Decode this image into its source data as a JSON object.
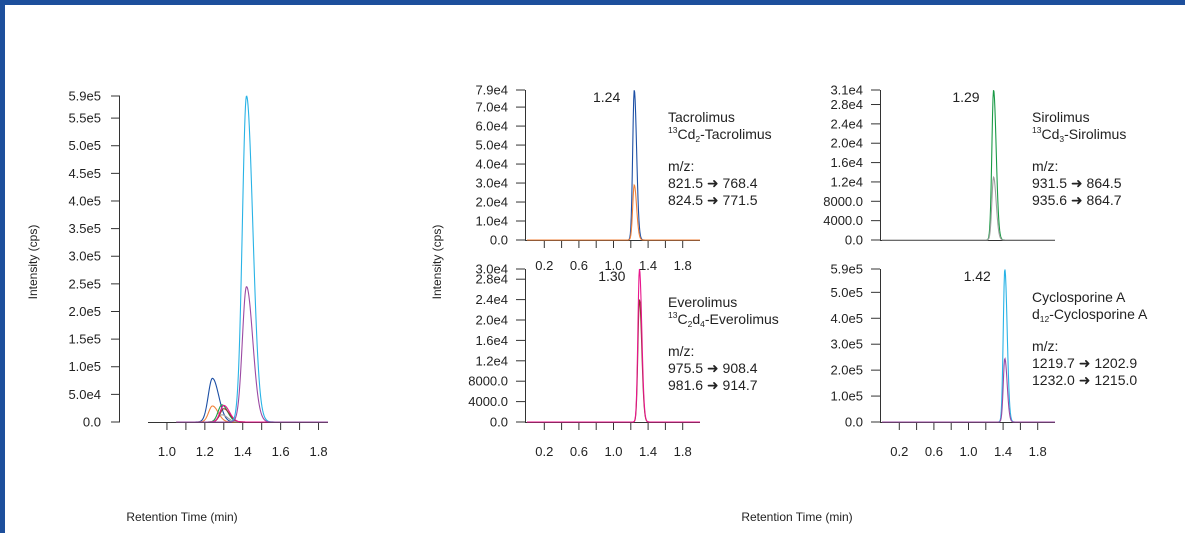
{
  "labels": {
    "x_left": "Retention Time (min)",
    "x_right": "Retention Time (min)",
    "y_left": "Intensity (cps)",
    "y_right": "Intensity (cps)"
  },
  "colors": {
    "frame": "#1d4f9c",
    "tacrolimus": "#1c4fa5",
    "tacrolimus_is": "#f0823a",
    "sirolimus": "#1a9a46",
    "sirolimus_is": "#a0a0a0",
    "everolimus": "#8b3a2a",
    "everolimus_is": "#e8168c",
    "cyclosporine": "#29b3e6",
    "cyclosporine_is": "#9b4aa3"
  },
  "chart_data": [
    {
      "id": "overlay",
      "type": "line",
      "xticks": [
        "1.0",
        "1.2",
        "1.4",
        "1.6",
        "1.8"
      ],
      "yticks": [
        "0.0",
        "5.0e4",
        "1.0e5",
        "1.5e5",
        "2.0e5",
        "2.5e5",
        "3.0e5",
        "3.5e5",
        "4.0e5",
        "4.5e5",
        "5.0e5",
        "5.5e5",
        "5.9e5"
      ],
      "xlim": [
        0.9,
        1.85
      ],
      "ylim": [
        0,
        590000
      ],
      "series": [
        {
          "color": "#1c4fa5",
          "peak_x": 1.24,
          "peak_y": 79000,
          "width": 0.022
        },
        {
          "color": "#f0823a",
          "peak_x": 1.24,
          "peak_y": 29000,
          "width": 0.02
        },
        {
          "color": "#1a9a46",
          "peak_x": 1.29,
          "peak_y": 31000,
          "width": 0.02
        },
        {
          "color": "#a0a0a0",
          "peak_x": 1.29,
          "peak_y": 13000,
          "width": 0.02
        },
        {
          "color": "#8b3a2a",
          "peak_x": 1.3,
          "peak_y": 24000,
          "width": 0.02
        },
        {
          "color": "#e8168c",
          "peak_x": 1.3,
          "peak_y": 30000,
          "width": 0.02
        },
        {
          "color": "#29b3e6",
          "peak_x": 1.42,
          "peak_y": 590000,
          "width": 0.022
        },
        {
          "color": "#9b4aa3",
          "peak_x": 1.42,
          "peak_y": 245000,
          "width": 0.022
        }
      ]
    },
    {
      "id": "tacrolimus",
      "type": "line",
      "peak_label": "1.24",
      "analyte": "Tacrolimus",
      "is_pre": "13",
      "is_mid1": "Cd",
      "is_sub": "2",
      "is_rest": "-Tacrolimus",
      "mz_label": "m/z:",
      "transitions": [
        "821.5 ➜ 768.4",
        "824.5 ➜ 771.5"
      ],
      "xticks": [
        "0.2",
        "0.6",
        "1.0",
        "1.4",
        "1.8"
      ],
      "yticks": [
        "0.0",
        "1.0e4",
        "2.0e4",
        "3.0e4",
        "4.0e4",
        "5.0e4",
        "6.0e4",
        "7.0e4",
        "7.9e4"
      ],
      "yvals": [
        0,
        10000,
        20000,
        30000,
        40000,
        50000,
        60000,
        70000,
        79000
      ],
      "ylim": [
        0,
        79000
      ],
      "series": [
        {
          "color": "#1c4fa5",
          "peak_x": 1.24,
          "peak_y": 79000,
          "width": 0.018
        },
        {
          "color": "#f0823a",
          "peak_x": 1.24,
          "peak_y": 29000,
          "width": 0.018
        }
      ]
    },
    {
      "id": "sirolimus",
      "type": "line",
      "peak_label": "1.29",
      "analyte": "Sirolimus",
      "is_pre": "13",
      "is_mid1": "Cd",
      "is_sub": "3",
      "is_rest": "-Sirolimus",
      "mz_label": "m/z:",
      "transitions": [
        "931.5 ➜ 864.5",
        "935.6 ➜ 864.7"
      ],
      "xticks": [
        "0.2",
        "0.6",
        "1.0",
        "1.4",
        "1.8"
      ],
      "yticks": [
        "0.0",
        "4000.0",
        "8000.0",
        "1.2e4",
        "1.6e4",
        "2.0e4",
        "2.4e4",
        "2.8e4",
        "3.1e4"
      ],
      "yvals": [
        0,
        4000,
        8000,
        12000,
        16000,
        20000,
        24000,
        28000,
        31000
      ],
      "ylim": [
        0,
        31000
      ],
      "series": [
        {
          "color": "#1a9a46",
          "peak_x": 1.29,
          "peak_y": 31000,
          "width": 0.02
        },
        {
          "color": "#a0a0a0",
          "peak_x": 1.29,
          "peak_y": 13000,
          "width": 0.02
        }
      ]
    },
    {
      "id": "everolimus",
      "type": "line",
      "peak_label": "1.30",
      "analyte": "Everolimus",
      "is_pre": "13",
      "is_mid1": "C",
      "is_sub": "2",
      "is_mid2": "d",
      "is_sub2": "4",
      "is_rest": "-Everolimus",
      "mz_label": "m/z:",
      "transitions": [
        "975.5 ➜ 908.4",
        "981.6 ➜ 914.7"
      ],
      "xticks": [
        "0.2",
        "0.6",
        "1.0",
        "1.4",
        "1.8"
      ],
      "yticks": [
        "0.0",
        "4000.0",
        "8000.0",
        "1.2e4",
        "1.6e4",
        "2.0e4",
        "2.4e4",
        "2.8e4",
        "3.0e4"
      ],
      "yvals": [
        0,
        4000,
        8000,
        12000,
        16000,
        20000,
        24000,
        28000,
        30000
      ],
      "ylim": [
        0,
        30000
      ],
      "series": [
        {
          "color": "#8b3a2a",
          "peak_x": 1.3,
          "peak_y": 24000,
          "width": 0.018
        },
        {
          "color": "#e8168c",
          "peak_x": 1.3,
          "peak_y": 30000,
          "width": 0.018
        }
      ]
    },
    {
      "id": "cyclosporine",
      "type": "line",
      "peak_label": "1.42",
      "analyte": "Cyclosporine A",
      "is_pre": "",
      "is_mid1": "d",
      "is_sub": "12",
      "is_rest": "-Cyclosporine A",
      "mz_label": "m/z:",
      "transitions": [
        "1219.7 ➜ 1202.9",
        "1232.0 ➜ 1215.0"
      ],
      "xticks": [
        "0.2",
        "0.6",
        "1.0",
        "1.4",
        "1.8"
      ],
      "yticks": [
        "0.0",
        "1.0e5",
        "2.0e5",
        "3.0e5",
        "4.0e5",
        "5.0e5",
        "5.9e5"
      ],
      "yvals": [
        0,
        100000,
        200000,
        300000,
        400000,
        500000,
        590000
      ],
      "ylim": [
        0,
        590000
      ],
      "series": [
        {
          "color": "#29b3e6",
          "peak_x": 1.42,
          "peak_y": 590000,
          "width": 0.018
        },
        {
          "color": "#9b4aa3",
          "peak_x": 1.42,
          "peak_y": 245000,
          "width": 0.018
        }
      ]
    }
  ]
}
